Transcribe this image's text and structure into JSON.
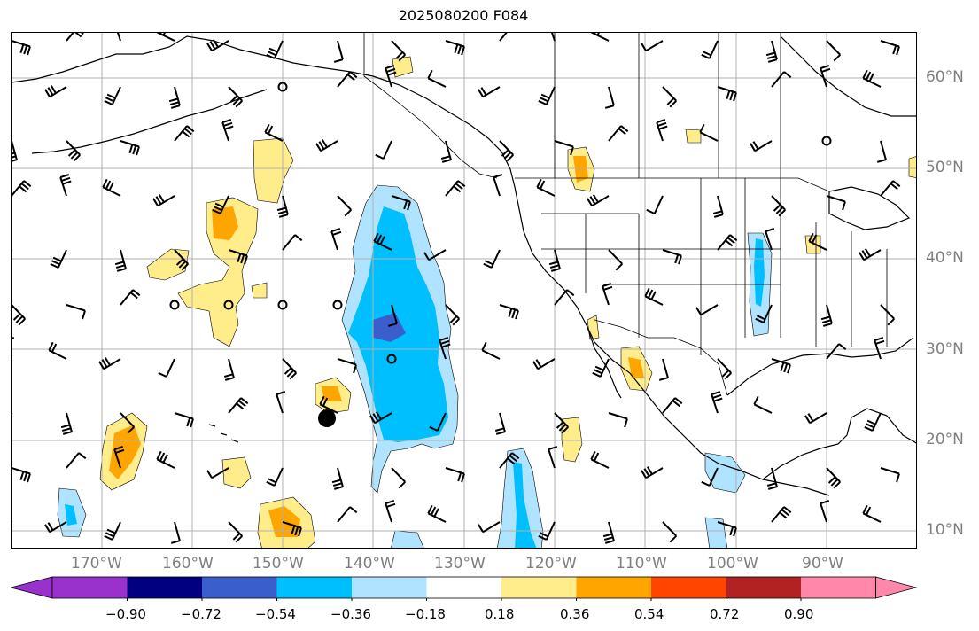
{
  "title": "2025080200 F084",
  "lon_labels": [
    "170°W",
    "160°W",
    "150°W",
    "140°W",
    "130°W",
    "120°W",
    "110°W",
    "100°W",
    "90°W"
  ],
  "lat_labels": [
    "60°N",
    "50°N",
    "40°N",
    "30°N",
    "20°N",
    "10°N"
  ],
  "colorbar": {
    "ticks": [
      "−0.90",
      "−0.72",
      "−0.54",
      "−0.36",
      "−0.18",
      "0.18",
      "0.36",
      "0.54",
      "0.72",
      "0.90"
    ],
    "colors": [
      "#9932cc",
      "#000080",
      "#3a5fcd",
      "#00bfff",
      "#afe3ff",
      "#ffffff",
      "#ffec8b",
      "#ffa500",
      "#ff4500",
      "#b22222",
      "#ff88aa"
    ]
  },
  "grid": {
    "on": true
  },
  "point_marker": {
    "type": "filled-circle"
  }
}
